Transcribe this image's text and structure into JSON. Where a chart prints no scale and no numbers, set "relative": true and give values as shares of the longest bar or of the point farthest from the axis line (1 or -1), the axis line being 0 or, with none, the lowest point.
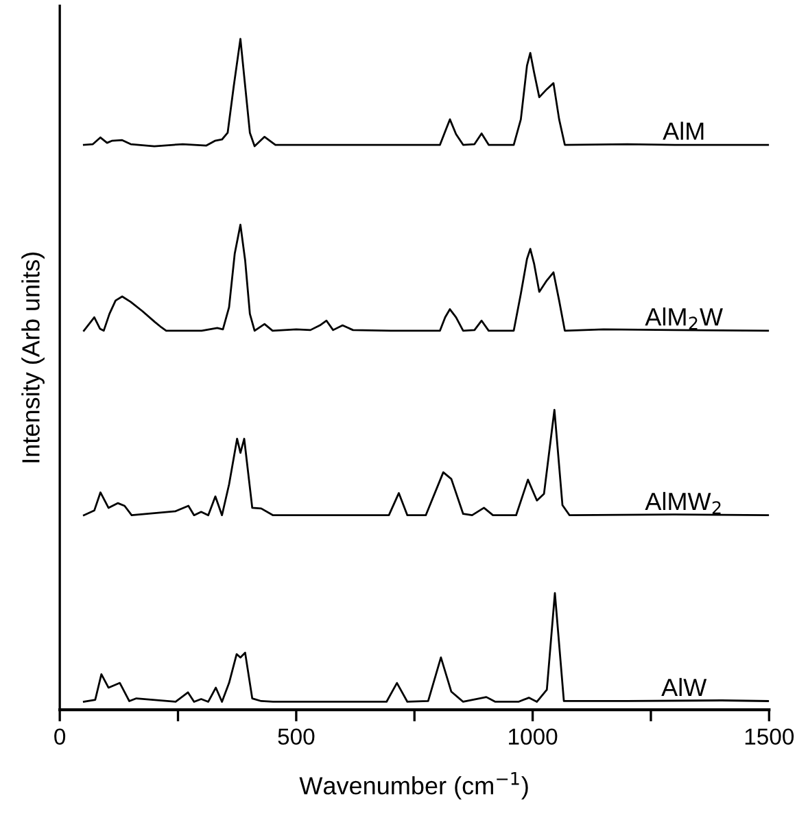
{
  "chart_data": {
    "type": "line",
    "relative": true,
    "xlabel": "Wavenumber (cm$^{−1}$)",
    "ylabel": "Intensity (Arb units)",
    "xlim": [
      0,
      1500
    ],
    "xticks": [
      0,
      {
        "value": 250,
        "label": null
      },
      500,
      {
        "value": 750,
        "label": null
      },
      1000,
      {
        "value": 1250,
        "label": null
      },
      1500
    ],
    "series": [
      {
        "name": "AlM",
        "color": "#000000",
        "x": [
          51,
          70,
          86,
          100,
          110,
          132,
          150,
          200,
          260,
          310,
          328,
          343,
          355,
          368,
          382,
          392,
          402,
          412,
          433,
          456,
          600,
          804,
          815,
          825,
          838,
          853,
          877,
          892,
          907,
          960,
          975,
          988,
          995,
          1003,
          1014,
          1030,
          1044,
          1056,
          1068,
          1200,
          1300,
          1498
        ],
        "values": [
          0.842,
          0.843,
          0.853,
          0.845,
          0.848,
          0.849,
          0.843,
          0.84,
          0.843,
          0.841,
          0.848,
          0.85,
          0.86,
          0.93,
          1.0,
          0.93,
          0.86,
          0.84,
          0.854,
          0.842,
          0.842,
          0.842,
          0.862,
          0.88,
          0.858,
          0.842,
          0.843,
          0.859,
          0.842,
          0.842,
          0.88,
          0.96,
          0.979,
          0.95,
          0.913,
          0.925,
          0.934,
          0.88,
          0.842,
          0.843,
          0.842,
          0.842
        ]
      },
      {
        "name": "AlM$_{2}$W",
        "color": "#000000",
        "x": [
          51,
          73,
          85,
          93,
          105,
          118,
          132,
          150,
          175,
          201,
          215,
          225,
          300,
          333,
          345,
          358,
          370,
          382,
          392,
          402,
          412,
          433,
          450,
          500,
          530,
          550,
          564,
          578,
          598,
          620,
          700,
          804,
          815,
          825,
          838,
          853,
          877,
          892,
          907,
          960,
          975,
          988,
          995,
          1003,
          1014,
          1030,
          1044,
          1056,
          1068,
          1150,
          1300,
          1498
        ],
        "values": [
          0.565,
          0.585,
          0.568,
          0.565,
          0.59,
          0.61,
          0.616,
          0.608,
          0.594,
          0.578,
          0.57,
          0.565,
          0.565,
          0.569,
          0.567,
          0.6,
          0.68,
          0.723,
          0.67,
          0.59,
          0.565,
          0.575,
          0.565,
          0.567,
          0.566,
          0.573,
          0.58,
          0.566,
          0.573,
          0.566,
          0.565,
          0.565,
          0.585,
          0.597,
          0.585,
          0.565,
          0.566,
          0.58,
          0.565,
          0.565,
          0.62,
          0.672,
          0.687,
          0.665,
          0.623,
          0.64,
          0.652,
          0.61,
          0.565,
          0.567,
          0.566,
          0.565
        ]
      },
      {
        "name": "AlMW$_{2}$",
        "color": "#000000",
        "x": [
          51,
          73,
          86,
          103,
          123,
          137,
          152,
          245,
          272,
          284,
          299,
          314,
          329,
          343,
          358,
          375,
          382,
          390,
          407,
          426,
          451,
          696,
          717,
          735,
          774,
          811,
          828,
          853,
          872,
          897,
          916,
          965,
          990,
          1009,
          1024,
          1046,
          1063,
          1078,
          1300,
          1498
        ],
        "values": [
          0.29,
          0.297,
          0.324,
          0.301,
          0.308,
          0.304,
          0.29,
          0.296,
          0.304,
          0.29,
          0.295,
          0.29,
          0.318,
          0.29,
          0.336,
          0.404,
          0.383,
          0.404,
          0.301,
          0.3,
          0.29,
          0.29,
          0.323,
          0.29,
          0.29,
          0.354,
          0.344,
          0.292,
          0.29,
          0.301,
          0.29,
          0.29,
          0.343,
          0.312,
          0.322,
          0.447,
          0.305,
          0.29,
          0.291,
          0.29
        ]
      },
      {
        "name": "AlW",
        "color": "#000000",
        "x": [
          51,
          75,
          88,
          103,
          127,
          147,
          162,
          245,
          271,
          284,
          299,
          314,
          330,
          343,
          358,
          374,
          382,
          392,
          407,
          426,
          451,
          691,
          713,
          735,
          779,
          806,
          828,
          853,
          902,
          921,
          970,
          992,
          1009,
          1030,
          1047,
          1066,
          1200,
          1400,
          1498
        ],
        "values": [
          0.012,
          0.015,
          0.053,
          0.033,
          0.04,
          0.013,
          0.017,
          0.012,
          0.026,
          0.012,
          0.016,
          0.012,
          0.033,
          0.012,
          0.04,
          0.083,
          0.078,
          0.085,
          0.017,
          0.013,
          0.012,
          0.012,
          0.04,
          0.012,
          0.013,
          0.078,
          0.027,
          0.012,
          0.019,
          0.012,
          0.012,
          0.018,
          0.012,
          0.03,
          0.174,
          0.013,
          0.013,
          0.014,
          0.013
        ]
      }
    ]
  }
}
